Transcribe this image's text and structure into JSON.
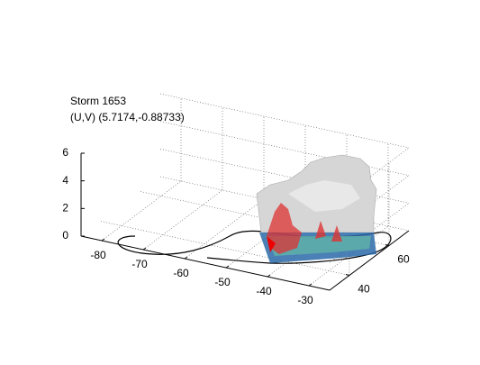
{
  "chart_data": {
    "type": "surface3d",
    "title": [
      "Storm 1653",
      "(U,V) (5.7174,-0.88733)"
    ],
    "xlim": [
      -85,
      -25
    ],
    "xticks": [
      -80,
      -70,
      -60,
      -50,
      -40,
      -30
    ],
    "ylim": [
      30,
      70
    ],
    "yticks": [
      40,
      60
    ],
    "zlim": [
      0,
      6
    ],
    "zticks": [
      0,
      2,
      4,
      6
    ],
    "grid": true
  }
}
